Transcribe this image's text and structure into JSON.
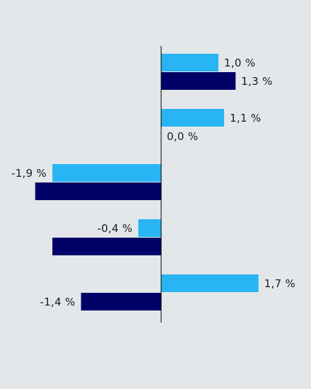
{
  "chart_data": {
    "type": "bar",
    "orientation": "horizontal",
    "categories": [
      "",
      "",
      "",
      "",
      ""
    ],
    "series": [
      {
        "color": "#29b5f3",
        "values": [
          1.0,
          1.1,
          -1.9,
          -0.4,
          1.7
        ]
      },
      {
        "color": "#000066",
        "values": [
          1.3,
          0.0,
          -2.2,
          -1.9,
          -1.4
        ]
      }
    ],
    "data_labels": [
      [
        "1,0 %",
        "1,1 %",
        "-1,9 %",
        "-0,4 %",
        "1,7 %"
      ],
      [
        "1,3 %",
        "0,0 %",
        "",
        "",
        "-1,4 %"
      ]
    ],
    "grid": false,
    "legend": "none"
  }
}
